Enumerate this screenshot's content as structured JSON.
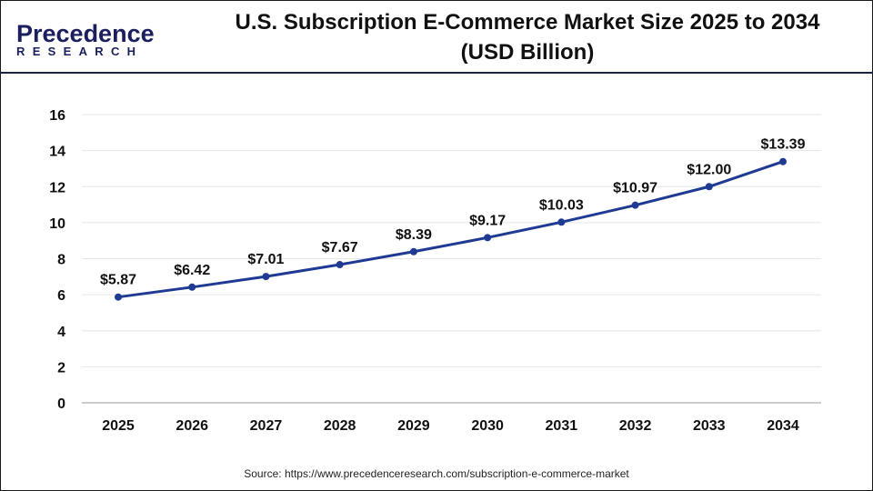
{
  "logo": {
    "line1": "Precedence",
    "line2": "RESEARCH"
  },
  "title_line1": "U.S. Subscription E-Commerce Market Size 2025 to 2034",
  "title_line2": "(USD Billion)",
  "source": "Source: https://www.precedenceresearch.com/subscription-e-commerce-market",
  "chart_data": {
    "type": "line",
    "title": "U.S. Subscription E-Commerce Market Size 2025 to 2034 (USD Billion)",
    "categories": [
      "2025",
      "2026",
      "2027",
      "2028",
      "2029",
      "2030",
      "2031",
      "2032",
      "2033",
      "2034"
    ],
    "values": [
      5.87,
      6.42,
      7.01,
      7.67,
      8.39,
      9.17,
      10.03,
      10.97,
      12.0,
      13.39
    ],
    "labels": [
      "$5.87",
      "$6.42",
      "$7.01",
      "$7.67",
      "$8.39",
      "$9.17",
      "$10.03",
      "$10.97",
      "$12.00",
      "$13.39"
    ],
    "ylim": [
      0,
      16
    ],
    "yticks": [
      0,
      2,
      4,
      6,
      8,
      10,
      12,
      14,
      16
    ],
    "grid": true,
    "line_color": "#1f3a93"
  }
}
